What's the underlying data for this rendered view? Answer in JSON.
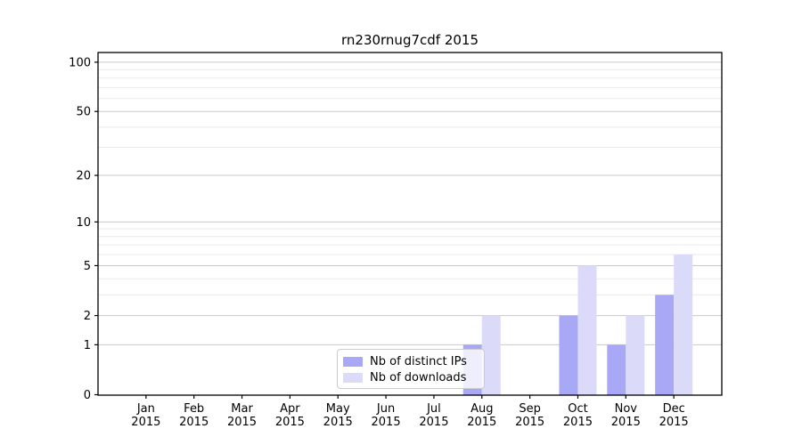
{
  "figure": {
    "title": "rn230rnug7cdf 2015"
  },
  "chart_data": {
    "type": "bar",
    "title": "rn230rnug7cdf 2015",
    "categories": [
      "Jan 2015",
      "Feb 2015",
      "Mar 2015",
      "Apr 2015",
      "May 2015",
      "Jun 2015",
      "Jul 2015",
      "Aug 2015",
      "Sep 2015",
      "Oct 2015",
      "Nov 2015",
      "Dec 2015"
    ],
    "series": [
      {
        "name": "Nb of distinct IPs",
        "color": "#a8a8f6",
        "values": [
          0,
          0,
          0,
          0,
          0,
          0,
          0,
          1,
          0,
          2,
          1,
          3
        ]
      },
      {
        "name": "Nb of downloads",
        "color": "#dbdbf9",
        "values": [
          0,
          0,
          0,
          0,
          0,
          0,
          0,
          2,
          0,
          5,
          2,
          6
        ]
      }
    ],
    "yticks": [
      0,
      1,
      2,
      5,
      10,
      20,
      50,
      100
    ],
    "yscale": "log1p",
    "ylim": [
      0,
      115
    ],
    "xlabel": "",
    "ylabel": "",
    "grid": "horizontal major and minor",
    "legend_position": "lower center"
  },
  "colors": {
    "grid_major": "#c9c9c9",
    "grid_minor": "#e9e9e9",
    "axis": "#000000",
    "text": "#000000",
    "legend_border": "#cccccc"
  }
}
